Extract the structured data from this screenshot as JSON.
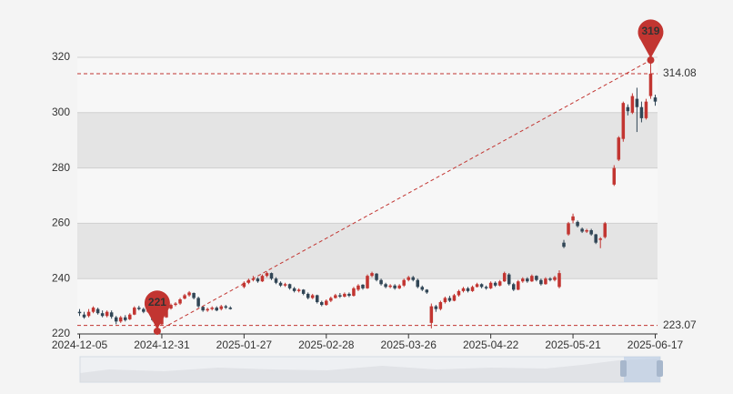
{
  "chart_data": {
    "type": "candlestick",
    "categories": [
      "2024-12-05",
      null,
      null,
      null,
      null,
      null,
      null,
      null,
      null,
      null,
      null,
      null,
      null,
      null,
      null,
      null,
      null,
      null,
      "2024-12-31",
      null,
      null,
      null,
      null,
      null,
      null,
      null,
      null,
      null,
      null,
      null,
      null,
      null,
      null,
      null,
      null,
      null,
      "2025-01-27",
      null,
      null,
      null,
      null,
      null,
      null,
      null,
      null,
      null,
      null,
      null,
      null,
      null,
      null,
      null,
      null,
      null,
      "2025-02-28",
      null,
      null,
      null,
      null,
      null,
      null,
      null,
      null,
      null,
      null,
      null,
      null,
      null,
      null,
      null,
      null,
      null,
      "2025-03-26",
      null,
      null,
      null,
      null,
      null,
      null,
      null,
      null,
      null,
      null,
      null,
      null,
      null,
      null,
      null,
      null,
      null,
      "2025-04-22",
      null,
      null,
      null,
      null,
      null,
      null,
      null,
      null,
      null,
      null,
      null,
      null,
      null,
      null,
      null,
      null,
      null,
      "2025-05-21",
      null,
      null,
      null,
      null,
      null,
      null,
      null,
      null,
      null,
      null,
      null,
      null,
      null,
      null,
      null,
      null,
      null,
      "2025-06-17"
    ],
    "series": [
      {
        "up_color": "#c23531",
        "down_color": "#314656",
        "values": [
          [
            228,
            227.5,
            226.5,
            229
          ],
          [
            227,
            226,
            225.5,
            228
          ],
          [
            226.5,
            228,
            226,
            229
          ],
          [
            228,
            229.5,
            227.5,
            230
          ],
          [
            229,
            227.5,
            227,
            229.5
          ],
          [
            227.5,
            226.5,
            226,
            228.5
          ],
          [
            226.5,
            228,
            226,
            228.5
          ],
          [
            227.8,
            226.2,
            225.5,
            228.5
          ],
          [
            226,
            224.5,
            223.5,
            226.5
          ],
          [
            224.5,
            226,
            224,
            226.5
          ],
          [
            226,
            225,
            224.5,
            226.8
          ],
          [
            225.3,
            227,
            225,
            227.5
          ],
          [
            227,
            229.5,
            226.8,
            230
          ],
          [
            229.5,
            229,
            228.5,
            230.2
          ],
          [
            229,
            228,
            227.5,
            229.5
          ],
          [
            228,
            229,
            227.6,
            229.5
          ],
          [
            228.8,
            225,
            224.5,
            229
          ],
          [
            224.5,
            223.07,
            221,
            225
          ],
          [
            223.5,
            226,
            223.2,
            226.5
          ],
          [
            226,
            229,
            225.8,
            229.5
          ],
          [
            229.2,
            230.5,
            228.8,
            231
          ],
          [
            230.5,
            231,
            230,
            231.5
          ],
          [
            231,
            232.5,
            230.5,
            233
          ],
          [
            232.8,
            234,
            232.5,
            234.5
          ],
          [
            234,
            235,
            233.5,
            235.5
          ],
          [
            234.8,
            233,
            232.5,
            235
          ],
          [
            233,
            230,
            229.5,
            233.5
          ],
          [
            229.8,
            228.5,
            228,
            230
          ],
          [
            228.5,
            229,
            228,
            229.5
          ],
          [
            229,
            229.5,
            228.5,
            230
          ],
          [
            229.5,
            228.5,
            228.2,
            230
          ],
          [
            229,
            230,
            228.5,
            230.5
          ],
          [
            230,
            229.5,
            229,
            230.5
          ],
          [
            229.5,
            229,
            228.8,
            230
          ],
          null,
          null,
          [
            237,
            238.5,
            236.5,
            239
          ],
          [
            238.5,
            239.5,
            238,
            240
          ],
          [
            239.5,
            240,
            239,
            241
          ],
          [
            240,
            239,
            238.5,
            240.5
          ],
          [
            239,
            241,
            238.8,
            241.5
          ],
          [
            241,
            242,
            240.5,
            242.5
          ],
          [
            242,
            240,
            239.5,
            242.2
          ],
          [
            240,
            238.5,
            238,
            240.5
          ],
          [
            238.5,
            237.5,
            237,
            239
          ],
          [
            237.5,
            238,
            237,
            238.5
          ],
          [
            238,
            236.5,
            236,
            238.2
          ],
          [
            236.5,
            235.5,
            235,
            237
          ],
          [
            235.5,
            236,
            235,
            236.5
          ],
          [
            236,
            234.5,
            234,
            236.2
          ],
          [
            234.5,
            233,
            232.5,
            235
          ],
          [
            233,
            234,
            232.6,
            234.5
          ],
          [
            234,
            231.5,
            231,
            234.2
          ],
          [
            231.5,
            230.5,
            230,
            232
          ],
          [
            230.5,
            232,
            230.2,
            232.5
          ],
          [
            232,
            233,
            231.5,
            233.5
          ],
          [
            233,
            234,
            232.8,
            234.5
          ],
          [
            234,
            233.5,
            233,
            234.8
          ],
          [
            233.5,
            234.5,
            233.2,
            235
          ],
          [
            234.5,
            233.8,
            233.3,
            235
          ],
          [
            233.8,
            236.5,
            233.5,
            237
          ],
          [
            236,
            237.5,
            235.5,
            238
          ],
          [
            237.8,
            236.5,
            236,
            238
          ],
          [
            236.5,
            241,
            236.3,
            241.5
          ],
          [
            241,
            242,
            240.5,
            242.5
          ],
          [
            241.8,
            239.5,
            239,
            242
          ],
          [
            239.5,
            238,
            237.5,
            240
          ],
          [
            238,
            237,
            236.5,
            238.5
          ],
          [
            237,
            237.5,
            236.5,
            238
          ],
          [
            237.5,
            236.5,
            236,
            238
          ],
          [
            236.5,
            237.5,
            236.2,
            238
          ],
          [
            237.5,
            239.5,
            237,
            240
          ],
          [
            239.5,
            240.5,
            239,
            241
          ],
          [
            240.5,
            239.5,
            239,
            241
          ],
          [
            239.5,
            237,
            236.5,
            240
          ],
          [
            237,
            236,
            235.5,
            237.5
          ],
          [
            236,
            235,
            234.5,
            236.2
          ],
          [
            224,
            230,
            222,
            231
          ],
          [
            230,
            229,
            228,
            230.5
          ],
          [
            229,
            231.5,
            228.5,
            232
          ],
          [
            231.5,
            233,
            231,
            233.5
          ],
          [
            233,
            232,
            231.5,
            233.8
          ],
          [
            232,
            234,
            231.8,
            234.5
          ],
          [
            234,
            235.5,
            233.5,
            236
          ],
          [
            235.5,
            236.5,
            235,
            237
          ],
          [
            236.5,
            235.5,
            235,
            237
          ],
          [
            235.5,
            237,
            235.2,
            237.5
          ],
          [
            237,
            238,
            236.8,
            238.5
          ],
          [
            238,
            237,
            236.5,
            238.3
          ],
          [
            237,
            236.5,
            236,
            237.5
          ],
          [
            236.5,
            238.5,
            236.2,
            239
          ],
          [
            238.5,
            237.5,
            237,
            239
          ],
          [
            237.5,
            239,
            237.2,
            239.5
          ],
          [
            239,
            242,
            238.8,
            242.5
          ],
          [
            241.5,
            238,
            237.5,
            242
          ],
          [
            238,
            236,
            235.5,
            238.5
          ],
          [
            236,
            239,
            235.8,
            239.5
          ],
          [
            239,
            240,
            238.5,
            240.5
          ],
          [
            240,
            239,
            238.5,
            240.5
          ],
          [
            239,
            241,
            238.8,
            241.5
          ],
          [
            241,
            239.5,
            239,
            241.2
          ],
          [
            239.5,
            238,
            237.5,
            240
          ],
          [
            238,
            240,
            237.8,
            240.5
          ],
          [
            240,
            239.5,
            239,
            240.5
          ],
          [
            239.5,
            240.5,
            239,
            241
          ],
          [
            237,
            242,
            236.5,
            243
          ],
          [
            253,
            251.5,
            251,
            254
          ],
          [
            256,
            260,
            255.5,
            260.5
          ],
          [
            261,
            262.5,
            260,
            263.5
          ],
          [
            260.5,
            259,
            258.5,
            261
          ],
          [
            258,
            257,
            256.5,
            258.5
          ],
          [
            257,
            257.5,
            256.5,
            258
          ],
          [
            257.5,
            256,
            255.5,
            258
          ],
          [
            256,
            253,
            252.5,
            256.2
          ],
          [
            254,
            254.5,
            251,
            255
          ],
          [
            255,
            260,
            254.5,
            260.5
          ],
          null,
          [
            274,
            280,
            273.5,
            281
          ],
          [
            283,
            291,
            282.5,
            291.5
          ],
          [
            290.5,
            303.5,
            289.5,
            304
          ],
          [
            302,
            300.5,
            299,
            303
          ],
          [
            300,
            306,
            299.5,
            307
          ],
          [
            305,
            302,
            293,
            309
          ],
          [
            302,
            298,
            296.5,
            304
          ],
          [
            298,
            304,
            297.5,
            305
          ],
          [
            306,
            314.08,
            305,
            319
          ],
          [
            305.5,
            304,
            302.5,
            306.5
          ]
        ]
      }
    ],
    "ylim": [
      220,
      320
    ],
    "yticks": [
      220,
      240,
      260,
      280,
      300,
      320
    ],
    "split_area": [
      "#f7f7f7",
      "#e4e4e4"
    ],
    "mark_lines": [
      314.08,
      223.07
    ],
    "mark_points": [
      319,
      221
    ],
    "mark_color": "#c23531"
  }
}
